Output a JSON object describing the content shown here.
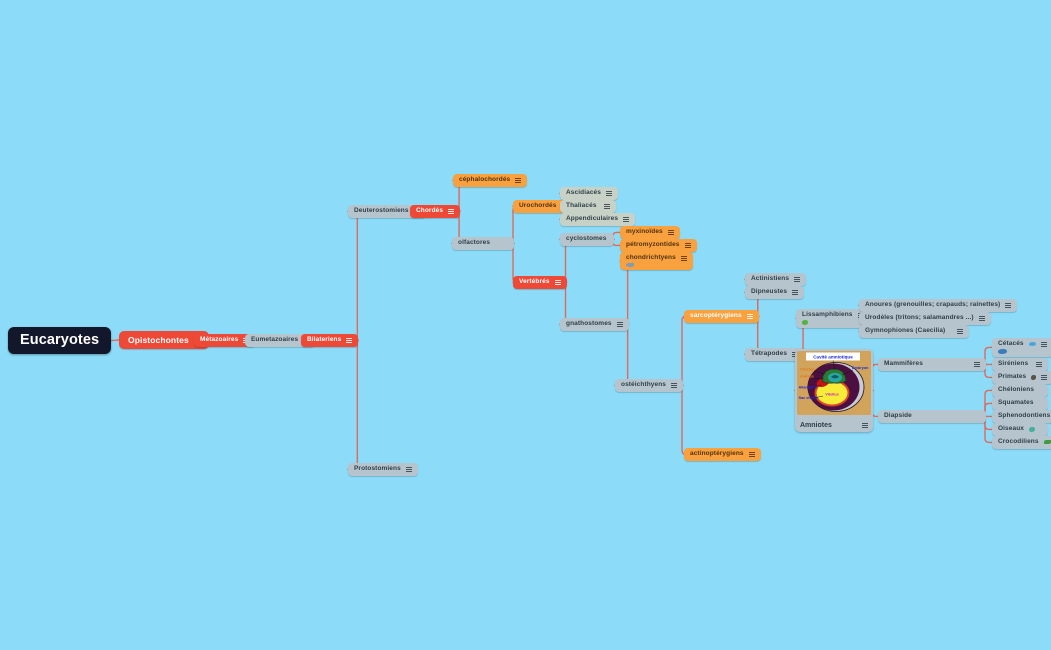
{
  "app": {
    "background_color": "#8cdcf9",
    "connector_color": "#e0695c",
    "node_colors": {
      "root": "#13172b",
      "red": "#ee4937",
      "orange": "#f8a13e",
      "gray": "#b5c4cd",
      "pale_green": "#c7d1c6"
    }
  },
  "nodes": {
    "eucaryotes": {
      "label": "Eucaryotes"
    },
    "opistochontes": {
      "label": "Opistochontes"
    },
    "metazoaires": {
      "label": "Métazoaires"
    },
    "eumetazoaires": {
      "label": "Eumetazoaires"
    },
    "bilateriens": {
      "label": "Bilateriens"
    },
    "deuterostomiens": {
      "label": "Deuterostomiens"
    },
    "protostomiens": {
      "label": "Protostomiens"
    },
    "chordes": {
      "label": "Chordés"
    },
    "cephalochordes": {
      "label": "céphalochordés"
    },
    "olfactores": {
      "label": "olfactores"
    },
    "urochordes": {
      "label": "Urochordés"
    },
    "ascidiaces": {
      "label": "Ascidiacés"
    },
    "thaliaces": {
      "label": "Thaliacés"
    },
    "appendiculaires": {
      "label": "Appendiculaires"
    },
    "vertebres": {
      "label": "Vertébrés"
    },
    "cyclostomes": {
      "label": "cyclostomes"
    },
    "myxinoides": {
      "label": "myxinoïdes"
    },
    "petromyzontides": {
      "label": "pétromyzontides"
    },
    "chondrichtyens": {
      "label": "chondrichtyens",
      "icon": "shark-icon"
    },
    "gnathostomes": {
      "label": "gnathostomes"
    },
    "osteichthyens": {
      "label": "ostéichthyens"
    },
    "sarcopterygiens": {
      "label": "sarcoptérygiens"
    },
    "actinopterygiens": {
      "label": "actinoptérygiens"
    },
    "actinistiens": {
      "label": "Actinistiens"
    },
    "dipneustes": {
      "label": "Dipneustes"
    },
    "tetrapodes": {
      "label": "Tétrapodes"
    },
    "lissamphibiens": {
      "label": "Lissamphibiens",
      "icon": "frog-icon"
    },
    "anoures": {
      "label": "Anoures (grenouilles; crapauds; rainettes)"
    },
    "urodeles": {
      "label": "Urodèles (tritons; salamandres ...)"
    },
    "gymnophiones": {
      "label": "Gymnophiones (Caecilia)"
    },
    "amniotes": {
      "label": "Amniotes"
    },
    "mammiferes": {
      "label": "Mammifères"
    },
    "diapside": {
      "label": "Diapside"
    },
    "cetaces": {
      "label": "Cétacés",
      "icons": [
        "dolphin-icon",
        "whale-icon"
      ]
    },
    "sireniens": {
      "label": "Siréniens"
    },
    "primates": {
      "label": "Primates",
      "icon": "gorilla-icon"
    },
    "cheloniens": {
      "label": "Chéloniens"
    },
    "squamates": {
      "label": "Squamates"
    },
    "sphenodontiens": {
      "label": "Sphenodontiens"
    },
    "oiseaux": {
      "label": "Oiseaux",
      "icon": "bird-icon"
    },
    "crocodiliens": {
      "label": "Crocodiliens",
      "icon": "crocodile-icon"
    }
  },
  "egg_diagram": {
    "title": "Cavité amniotique",
    "labels": {
      "chorion": "Chorion",
      "amnios": "Amnios",
      "allantoide": "Allantoïde",
      "sac_vitellin": "Sac vitellin",
      "vitellus": "Vitellus",
      "embryon": "Embryon"
    }
  },
  "edges": [
    {
      "from": "eucaryotes",
      "to": "opistochontes"
    },
    {
      "from": "opistochontes",
      "to": "metazoaires"
    },
    {
      "from": "metazoaires",
      "to": "eumetazoaires"
    },
    {
      "from": "eumetazoaires",
      "to": "bilateriens"
    },
    {
      "from": "bilateriens",
      "to": "deuterostomiens"
    },
    {
      "from": "bilateriens",
      "to": "protostomiens"
    },
    {
      "from": "deuterostomiens",
      "to": "chordes"
    },
    {
      "from": "chordes",
      "to": "cephalochordes"
    },
    {
      "from": "chordes",
      "to": "olfactores"
    },
    {
      "from": "olfactores",
      "to": "urochordes"
    },
    {
      "from": "olfactores",
      "to": "vertebres"
    },
    {
      "from": "urochordes",
      "to": "ascidiaces"
    },
    {
      "from": "urochordes",
      "to": "thaliaces"
    },
    {
      "from": "urochordes",
      "to": "appendiculaires"
    },
    {
      "from": "vertebres",
      "to": "cyclostomes"
    },
    {
      "from": "vertebres",
      "to": "gnathostomes"
    },
    {
      "from": "cyclostomes",
      "to": "myxinoides"
    },
    {
      "from": "cyclostomes",
      "to": "petromyzontides"
    },
    {
      "from": "gnathostomes",
      "to": "chondrichtyens"
    },
    {
      "from": "gnathostomes",
      "to": "osteichthyens"
    },
    {
      "from": "osteichthyens",
      "to": "sarcopterygiens"
    },
    {
      "from": "osteichthyens",
      "to": "actinopterygiens"
    },
    {
      "from": "sarcopterygiens",
      "to": "actinistiens"
    },
    {
      "from": "sarcopterygiens",
      "to": "dipneustes"
    },
    {
      "from": "sarcopterygiens",
      "to": "tetrapodes"
    },
    {
      "from": "tetrapodes",
      "to": "lissamphibiens"
    },
    {
      "from": "tetrapodes",
      "to": "amniotes"
    },
    {
      "from": "lissamphibiens",
      "to": "anoures"
    },
    {
      "from": "lissamphibiens",
      "to": "urodeles"
    },
    {
      "from": "lissamphibiens",
      "to": "gymnophiones"
    },
    {
      "from": "amniotes",
      "to": "mammiferes"
    },
    {
      "from": "amniotes",
      "to": "diapside"
    },
    {
      "from": "mammiferes",
      "to": "cetaces"
    },
    {
      "from": "mammiferes",
      "to": "sireniens"
    },
    {
      "from": "mammiferes",
      "to": "primates"
    },
    {
      "from": "diapside",
      "to": "cheloniens"
    },
    {
      "from": "diapside",
      "to": "squamates"
    },
    {
      "from": "diapside",
      "to": "sphenodontiens"
    },
    {
      "from": "diapside",
      "to": "oiseaux"
    },
    {
      "from": "diapside",
      "to": "crocodiliens"
    }
  ]
}
